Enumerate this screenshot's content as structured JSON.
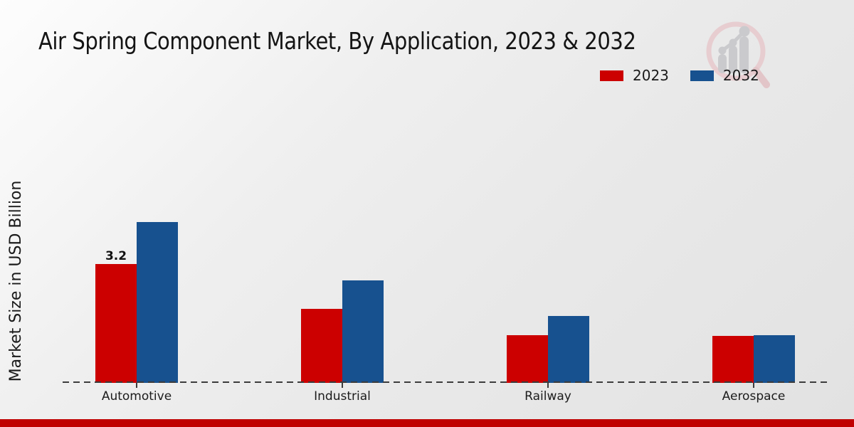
{
  "page": {
    "title": "Air Spring Component Market, By Application, 2023 & 2032"
  },
  "icons": {
    "watermark": "magnifier-growth-bar-chart-logo"
  },
  "colors": {
    "series_2023": "#cc0000",
    "series_2032": "#17518f",
    "footer_strip": "#c00000",
    "baseline": "#3c3c3c"
  },
  "chart_data": {
    "type": "bar",
    "title": "Air Spring Component Market, By Application, 2023 & 2032",
    "xlabel": "",
    "ylabel": "Market Size in USD Billion",
    "categories": [
      "Automotive",
      "Industrial",
      "Railway",
      "Aerospace"
    ],
    "series": [
      {
        "name": "2023",
        "color": "#cc0000",
        "values": [
          3.2,
          2.0,
          1.28,
          1.26
        ]
      },
      {
        "name": "2032",
        "color": "#17518f",
        "values": [
          4.33,
          2.76,
          1.8,
          1.29
        ]
      }
    ],
    "data_labels": [
      {
        "category_index": 0,
        "series_index": 0,
        "text": "3.2"
      }
    ],
    "ylim": [
      0,
      4.6
    ],
    "y_axis_ticks_visible": false,
    "baseline_style": "dashed",
    "grid": false,
    "legend_position": "top-right"
  }
}
